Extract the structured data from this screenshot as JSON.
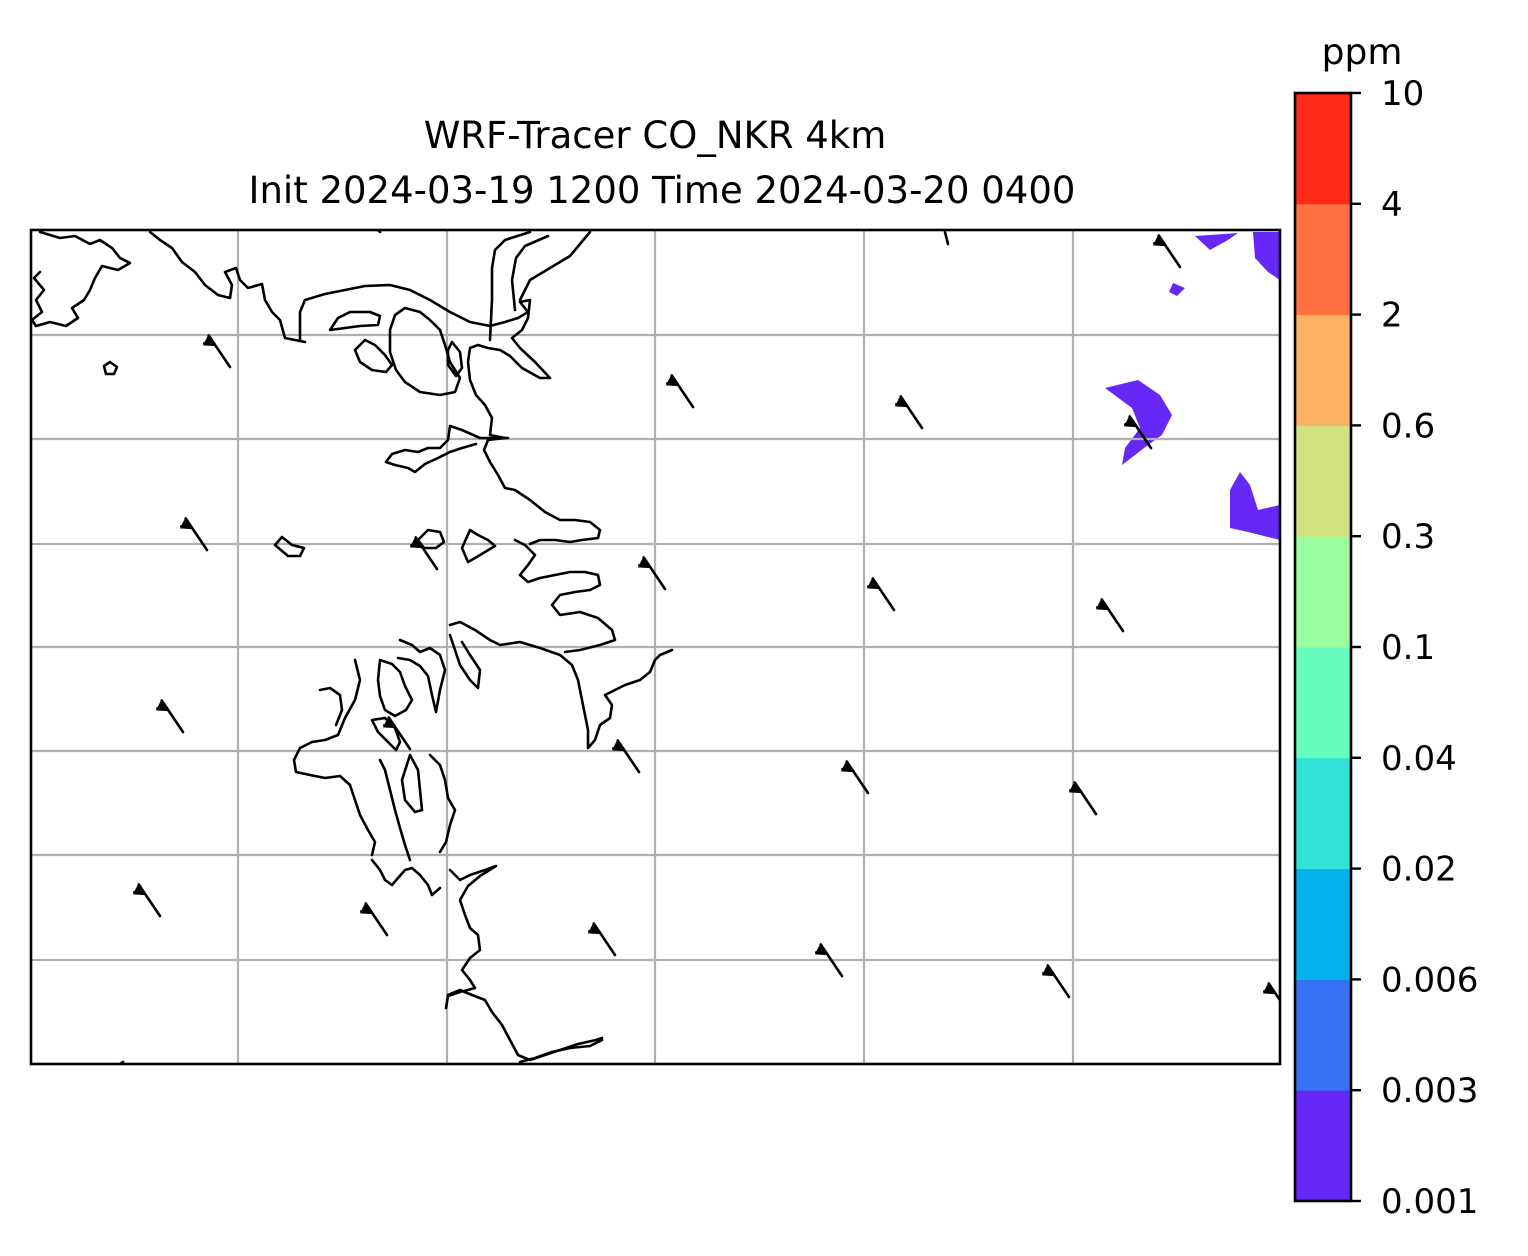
{
  "title": {
    "line1": "WRF-Tracer CO_NKR 4km",
    "line2": "Init 2024-03-19 1200 Time 2024-03-20 0400"
  },
  "colorbar": {
    "unit": "ppm",
    "ticks": [
      "0.001",
      "0.003",
      "0.006",
      "0.02",
      "0.04",
      "0.1",
      "0.3",
      "0.6",
      "2",
      "4",
      "10"
    ],
    "colors": [
      "#6528f7",
      "#3671f3",
      "#04b2ec",
      "#31e3d6",
      "#67fdbc",
      "#9bfe9e",
      "#d0e37f",
      "#fdb263",
      "#ff7140",
      "#ff2a18"
    ]
  },
  "map": {
    "gridlines": true,
    "tracer_fill_color": "#6528f7",
    "coastline_color": "#000000",
    "wind_barbs": true
  }
}
